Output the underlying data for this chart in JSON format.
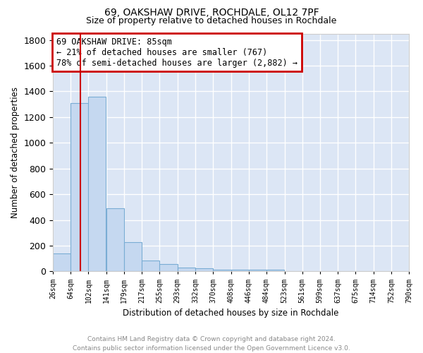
{
  "title1": "69, OAKSHAW DRIVE, ROCHDALE, OL12 7PF",
  "title2": "Size of property relative to detached houses in Rochdale",
  "xlabel": "Distribution of detached houses by size in Rochdale",
  "ylabel": "Number of detached properties",
  "footer": "Contains HM Land Registry data © Crown copyright and database right 2024.\nContains public sector information licensed under the Open Government Licence v3.0.",
  "bin_edges": [
    26,
    64,
    102,
    141,
    179,
    217,
    255,
    293,
    332,
    370,
    408,
    446,
    484,
    523,
    561,
    599,
    637,
    675,
    714,
    752,
    790
  ],
  "bar_heights": [
    140,
    1310,
    1360,
    490,
    230,
    85,
    55,
    32,
    22,
    15,
    15,
    15,
    15,
    0,
    0,
    0,
    0,
    0,
    0,
    0
  ],
  "bar_color": "#c5d8f0",
  "bar_edge_color": "#7aadd4",
  "bg_color": "#dce6f5",
  "grid_color": "#ffffff",
  "red_line_x": 85,
  "ylim": [
    0,
    1850
  ],
  "yticks": [
    0,
    200,
    400,
    600,
    800,
    1000,
    1200,
    1400,
    1600,
    1800
  ],
  "annotation_title": "69 OAKSHAW DRIVE: 85sqm",
  "annotation_line1": "← 21% of detached houses are smaller (767)",
  "annotation_line2": "78% of semi-detached houses are larger (2,882) →",
  "annotation_box_color": "#ffffff",
  "annotation_box_edge": "#cc0000",
  "tick_labels": [
    "26sqm",
    "64sqm",
    "102sqm",
    "141sqm",
    "179sqm",
    "217sqm",
    "255sqm",
    "293sqm",
    "332sqm",
    "370sqm",
    "408sqm",
    "446sqm",
    "484sqm",
    "523sqm",
    "561sqm",
    "599sqm",
    "637sqm",
    "675sqm",
    "714sqm",
    "752sqm",
    "790sqm"
  ]
}
